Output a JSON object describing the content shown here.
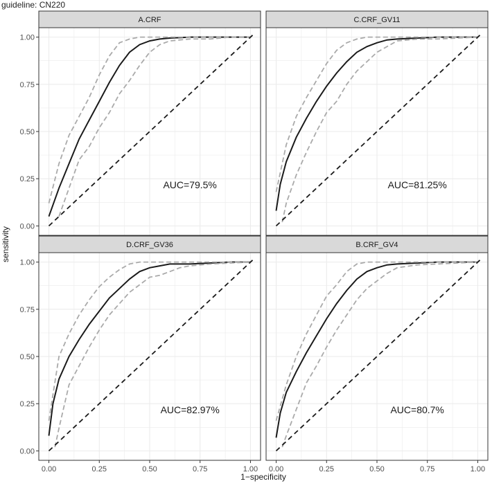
{
  "caption": "guideline: CN220",
  "xlabel": "1−specificity",
  "ylabel": "sensitivity",
  "colors": {
    "strip_fill": "#d9d9d9",
    "panel_border": "#333333",
    "grid": "#ebebeb",
    "roc_line": "#1a1a1a",
    "ci_line": "#aaaaaa",
    "diagonal": "#1a1a1a"
  },
  "chart_data": [
    {
      "type": "line",
      "strip": "A.CRF",
      "annotation": "AUC=79.5%",
      "xlim": [
        0,
        1
      ],
      "ylim": [
        0,
        1
      ],
      "xticks": [
        "0.00",
        "0.25",
        "0.50",
        "0.75",
        "1.00"
      ],
      "yticks": [
        "0.00",
        "0.25",
        "0.50",
        "0.75",
        "1.00"
      ],
      "series": [
        {
          "role": "roc",
          "x": [
            0,
            0.05,
            0.1,
            0.15,
            0.2,
            0.25,
            0.3,
            0.35,
            0.4,
            0.45,
            0.5,
            0.55,
            0.6,
            0.7,
            0.8,
            0.9,
            1.0
          ],
          "y": [
            0.05,
            0.2,
            0.33,
            0.46,
            0.56,
            0.66,
            0.76,
            0.85,
            0.92,
            0.96,
            0.98,
            0.99,
            0.995,
            1.0,
            1.0,
            1.0,
            1.0
          ]
        },
        {
          "role": "ci_upper",
          "x": [
            0,
            0.05,
            0.1,
            0.15,
            0.2,
            0.25,
            0.3,
            0.35,
            0.4,
            0.45,
            0.5,
            0.6,
            0.7,
            0.8,
            0.9,
            1.0
          ],
          "y": [
            0.12,
            0.33,
            0.48,
            0.58,
            0.68,
            0.8,
            0.9,
            0.97,
            0.99,
            1.0,
            1.0,
            1.0,
            1.0,
            1.0,
            1.0,
            1.0
          ]
        },
        {
          "role": "ci_lower",
          "x": [
            0.05,
            0.1,
            0.15,
            0.2,
            0.25,
            0.3,
            0.35,
            0.4,
            0.45,
            0.5,
            0.55,
            0.6,
            0.65,
            0.7,
            0.8,
            0.9,
            1.0
          ],
          "y": [
            0.05,
            0.2,
            0.35,
            0.42,
            0.52,
            0.6,
            0.7,
            0.77,
            0.85,
            0.92,
            0.96,
            0.98,
            0.985,
            0.99,
            0.99,
            1.0,
            1.0
          ]
        },
        {
          "role": "diagonal",
          "x": [
            0,
            1.02
          ],
          "y": [
            0,
            1.02
          ]
        }
      ]
    },
    {
      "type": "line",
      "strip": "C.CRF_GV11",
      "annotation": "AUC=81.25%",
      "xlim": [
        0,
        1
      ],
      "ylim": [
        0,
        1
      ],
      "xticks": [
        "0.00",
        "0.25",
        "0.50",
        "0.75",
        "1.00"
      ],
      "yticks": [
        "0.00",
        "0.25",
        "0.50",
        "0.75",
        "1.00"
      ],
      "series": [
        {
          "role": "roc",
          "x": [
            0,
            0.02,
            0.05,
            0.1,
            0.15,
            0.2,
            0.25,
            0.3,
            0.35,
            0.4,
            0.45,
            0.5,
            0.55,
            0.6,
            0.7,
            0.8,
            0.9,
            1.0
          ],
          "y": [
            0.08,
            0.22,
            0.34,
            0.47,
            0.57,
            0.66,
            0.74,
            0.81,
            0.87,
            0.92,
            0.95,
            0.97,
            0.985,
            0.99,
            0.995,
            1.0,
            1.0,
            1.0
          ]
        },
        {
          "role": "ci_upper",
          "x": [
            0,
            0.05,
            0.1,
            0.15,
            0.2,
            0.25,
            0.3,
            0.35,
            0.4,
            0.45,
            0.5,
            0.6,
            0.7,
            0.8,
            0.9,
            1.0
          ],
          "y": [
            0.18,
            0.43,
            0.58,
            0.68,
            0.77,
            0.86,
            0.93,
            0.97,
            0.99,
            1.0,
            1.0,
            1.0,
            1.0,
            1.0,
            1.0,
            1.0
          ]
        },
        {
          "role": "ci_lower",
          "x": [
            0.03,
            0.05,
            0.1,
            0.15,
            0.2,
            0.25,
            0.3,
            0.35,
            0.4,
            0.45,
            0.5,
            0.55,
            0.6,
            0.7,
            0.8,
            0.9,
            1.0
          ],
          "y": [
            0.02,
            0.12,
            0.27,
            0.39,
            0.5,
            0.6,
            0.66,
            0.75,
            0.82,
            0.87,
            0.92,
            0.95,
            0.98,
            0.99,
            0.99,
            0.995,
            1.0
          ]
        },
        {
          "role": "diagonal",
          "x": [
            0,
            1.02
          ],
          "y": [
            0,
            1.02
          ]
        }
      ]
    },
    {
      "type": "line",
      "strip": "D.CRF_GV36",
      "annotation": "AUC=82.97%",
      "xlim": [
        0,
        1
      ],
      "ylim": [
        0,
        1
      ],
      "xticks": [
        "0.00",
        "0.25",
        "0.50",
        "0.75",
        "1.00"
      ],
      "yticks": [
        "0.00",
        "0.25",
        "0.50",
        "0.75",
        "1.00"
      ],
      "series": [
        {
          "role": "roc",
          "x": [
            0,
            0.02,
            0.05,
            0.1,
            0.15,
            0.2,
            0.25,
            0.3,
            0.35,
            0.4,
            0.45,
            0.5,
            0.55,
            0.6,
            0.7,
            0.8,
            0.9,
            1.0
          ],
          "y": [
            0.08,
            0.25,
            0.38,
            0.5,
            0.59,
            0.67,
            0.74,
            0.81,
            0.86,
            0.91,
            0.95,
            0.97,
            0.98,
            0.99,
            0.99,
            0.995,
            1.0,
            1.0
          ]
        },
        {
          "role": "ci_upper",
          "x": [
            0,
            0.05,
            0.1,
            0.15,
            0.2,
            0.25,
            0.3,
            0.35,
            0.4,
            0.45,
            0.5,
            0.6,
            0.7,
            0.8,
            0.9,
            1.0
          ],
          "y": [
            0.16,
            0.5,
            0.62,
            0.72,
            0.8,
            0.87,
            0.92,
            0.96,
            0.99,
            1.0,
            1.0,
            1.0,
            1.0,
            1.0,
            1.0,
            1.0
          ]
        },
        {
          "role": "ci_lower",
          "x": [
            0.03,
            0.05,
            0.1,
            0.15,
            0.2,
            0.25,
            0.3,
            0.35,
            0.4,
            0.45,
            0.5,
            0.55,
            0.6,
            0.65,
            0.7,
            0.8,
            0.9,
            1.0
          ],
          "y": [
            0.02,
            0.12,
            0.35,
            0.45,
            0.55,
            0.64,
            0.72,
            0.78,
            0.84,
            0.88,
            0.92,
            0.93,
            0.95,
            0.97,
            0.98,
            0.99,
            0.995,
            1.0
          ]
        },
        {
          "role": "diagonal",
          "x": [
            0,
            1.02
          ],
          "y": [
            0,
            1.02
          ]
        }
      ]
    },
    {
      "type": "line",
      "strip": "B.CRF_GV4",
      "annotation": "AUC=80.7%",
      "xlim": [
        0,
        1
      ],
      "ylim": [
        0,
        1
      ],
      "xticks": [
        "0.00",
        "0.25",
        "0.50",
        "0.75",
        "1.00"
      ],
      "yticks": [
        "0.00",
        "0.25",
        "0.50",
        "0.75",
        "1.00"
      ],
      "series": [
        {
          "role": "roc",
          "x": [
            0,
            0.02,
            0.05,
            0.1,
            0.15,
            0.2,
            0.25,
            0.3,
            0.35,
            0.4,
            0.45,
            0.5,
            0.55,
            0.6,
            0.7,
            0.8,
            0.9,
            1.0
          ],
          "y": [
            0.07,
            0.2,
            0.31,
            0.42,
            0.52,
            0.61,
            0.7,
            0.78,
            0.85,
            0.91,
            0.95,
            0.97,
            0.985,
            0.99,
            0.995,
            1.0,
            1.0,
            1.0
          ]
        },
        {
          "role": "ci_upper",
          "x": [
            0,
            0.05,
            0.1,
            0.15,
            0.2,
            0.25,
            0.3,
            0.35,
            0.4,
            0.45,
            0.5,
            0.6,
            0.7,
            0.8,
            0.9,
            1.0
          ],
          "y": [
            0.16,
            0.35,
            0.5,
            0.62,
            0.72,
            0.82,
            0.88,
            0.95,
            0.99,
            1.0,
            1.0,
            1.0,
            1.0,
            1.0,
            1.0,
            1.0
          ]
        },
        {
          "role": "ci_lower",
          "x": [
            0.03,
            0.05,
            0.1,
            0.15,
            0.2,
            0.25,
            0.3,
            0.35,
            0.4,
            0.45,
            0.5,
            0.55,
            0.6,
            0.7,
            0.8,
            0.9,
            1.0
          ],
          "y": [
            0.02,
            0.08,
            0.22,
            0.36,
            0.45,
            0.55,
            0.64,
            0.72,
            0.8,
            0.86,
            0.9,
            0.94,
            0.97,
            0.985,
            0.99,
            0.995,
            1.0
          ]
        },
        {
          "role": "diagonal",
          "x": [
            0,
            1.02
          ],
          "y": [
            0,
            1.02
          ]
        }
      ]
    }
  ]
}
